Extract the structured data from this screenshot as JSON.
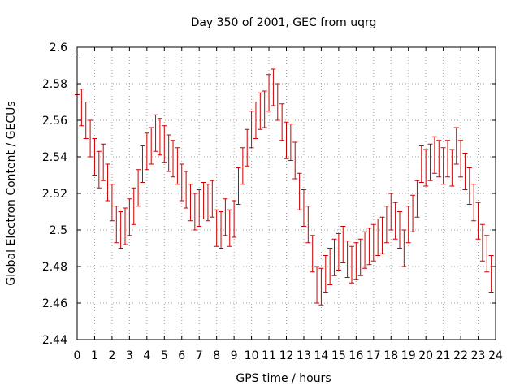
{
  "chart_data": {
    "type": "scatter",
    "title": "Day 350 of 2001, GEC from uqrg",
    "xlabel": "GPS time / hours",
    "ylabel": "Global Electron Content / GECUs",
    "xlim": [
      0,
      24
    ],
    "ylim": [
      2.44,
      2.6
    ],
    "x_ticks": [
      "0",
      "1",
      "2",
      "3",
      "4",
      "5",
      "6",
      "7",
      "8",
      "9",
      "10",
      "11",
      "12",
      "13",
      "14",
      "15",
      "16",
      "17",
      "18",
      "19",
      "20",
      "21",
      "22",
      "23",
      "24"
    ],
    "y_ticks": [
      "2.44",
      "2.46",
      "2.48",
      "2.5",
      "2.52",
      "2.54",
      "2.56",
      "2.58",
      "2.6"
    ],
    "grid": true,
    "legend": "none",
    "colors": {
      "series": "#cc0000",
      "grid": "#a0a0a0",
      "axis": "#000000"
    },
    "series": [
      {
        "error": 0.01,
        "points": [
          [
            0.0,
            2.584
          ],
          [
            0.25,
            2.567
          ],
          [
            0.5,
            2.56
          ],
          [
            0.75,
            2.55
          ],
          [
            1.0,
            2.54
          ],
          [
            1.25,
            2.533
          ],
          [
            1.5,
            2.537
          ],
          [
            1.75,
            2.526
          ],
          [
            2.0,
            2.515
          ],
          [
            2.25,
            2.503
          ],
          [
            2.5,
            2.5
          ],
          [
            2.75,
            2.502
          ],
          [
            3.0,
            2.507
          ],
          [
            3.25,
            2.513
          ],
          [
            3.5,
            2.523
          ],
          [
            3.75,
            2.536
          ],
          [
            4.0,
            2.543
          ],
          [
            4.25,
            2.546
          ],
          [
            4.5,
            2.553
          ],
          [
            4.75,
            2.551
          ],
          [
            5.0,
            2.547
          ],
          [
            5.25,
            2.542
          ],
          [
            5.5,
            2.539
          ],
          [
            5.75,
            2.535
          ],
          [
            6.0,
            2.526
          ],
          [
            6.25,
            2.522
          ],
          [
            6.5,
            2.515
          ],
          [
            6.75,
            2.51
          ],
          [
            7.0,
            2.512
          ],
          [
            7.25,
            2.516
          ],
          [
            7.5,
            2.515
          ],
          [
            7.75,
            2.517
          ],
          [
            8.0,
            2.501
          ],
          [
            8.25,
            2.5
          ],
          [
            8.5,
            2.507
          ],
          [
            8.75,
            2.501
          ],
          [
            9.0,
            2.506
          ],
          [
            9.25,
            2.524
          ],
          [
            9.5,
            2.535
          ],
          [
            9.75,
            2.545
          ],
          [
            10.0,
            2.555
          ],
          [
            10.25,
            2.56
          ],
          [
            10.5,
            2.565
          ],
          [
            10.75,
            2.566
          ],
          [
            11.0,
            2.575
          ],
          [
            11.25,
            2.578
          ],
          [
            11.5,
            2.57
          ],
          [
            11.75,
            2.559
          ],
          [
            12.0,
            2.549
          ],
          [
            12.25,
            2.548
          ],
          [
            12.5,
            2.538
          ],
          [
            12.75,
            2.521
          ],
          [
            13.0,
            2.512
          ],
          [
            13.25,
            2.503
          ],
          [
            13.5,
            2.487
          ],
          [
            13.75,
            2.47
          ],
          [
            14.0,
            2.469
          ],
          [
            14.25,
            2.476
          ],
          [
            14.5,
            2.48
          ],
          [
            14.75,
            2.485
          ],
          [
            15.0,
            2.488
          ],
          [
            15.25,
            2.492
          ],
          [
            15.5,
            2.484
          ],
          [
            15.75,
            2.481
          ],
          [
            16.0,
            2.483
          ],
          [
            16.25,
            2.485
          ],
          [
            16.5,
            2.489
          ],
          [
            16.75,
            2.491
          ],
          [
            17.0,
            2.493
          ],
          [
            17.25,
            2.496
          ],
          [
            17.5,
            2.497
          ],
          [
            17.75,
            2.503
          ],
          [
            18.0,
            2.51
          ],
          [
            18.25,
            2.505
          ],
          [
            18.5,
            2.5
          ],
          [
            18.75,
            2.49
          ],
          [
            19.0,
            2.503
          ],
          [
            19.25,
            2.509
          ],
          [
            19.5,
            2.517
          ],
          [
            19.75,
            2.536
          ],
          [
            20.0,
            2.534
          ],
          [
            20.25,
            2.537
          ],
          [
            20.5,
            2.541
          ],
          [
            20.75,
            2.539
          ],
          [
            21.0,
            2.535
          ],
          [
            21.25,
            2.539
          ],
          [
            21.5,
            2.534
          ],
          [
            21.75,
            2.546
          ],
          [
            22.0,
            2.539
          ],
          [
            22.25,
            2.532
          ],
          [
            22.5,
            2.524
          ],
          [
            22.75,
            2.515
          ],
          [
            23.0,
            2.505
          ],
          [
            23.25,
            2.493
          ],
          [
            23.5,
            2.487
          ],
          [
            23.75,
            2.476
          ]
        ]
      }
    ]
  }
}
